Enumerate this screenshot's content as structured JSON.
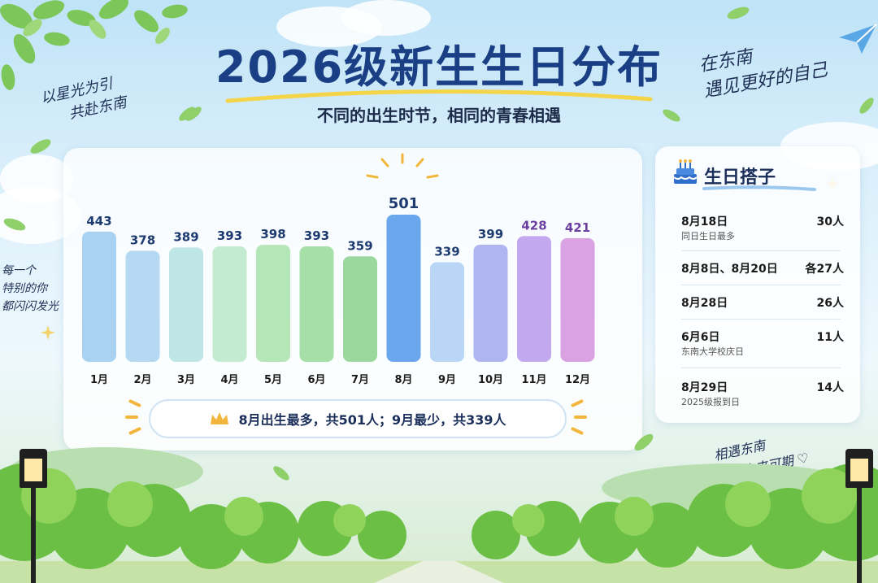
{
  "title": "2026级新生生日分布",
  "subtitle": "不同的出生时节，相同的青春相遇",
  "slogans": {
    "top_left": [
      "以星光为引",
      "共赴东南"
    ],
    "top_right": [
      "在东南",
      "遇见更好的自己"
    ],
    "left_side": [
      "每一个",
      "特别的你",
      "都闪闪发光"
    ],
    "bottom_right": [
      "相遇东南",
      "未来可期 ♡"
    ]
  },
  "chart_data": {
    "type": "bar",
    "categories": [
      "1月",
      "2月",
      "3月",
      "4月",
      "5月",
      "6月",
      "7月",
      "8月",
      "9月",
      "10月",
      "11月",
      "12月"
    ],
    "values": [
      443,
      378,
      389,
      393,
      398,
      393,
      359,
      501,
      339,
      399,
      428,
      421
    ],
    "colors": [
      "#a9d2f2",
      "#b6d9f3",
      "#bfe6e6",
      "#c3ebcf",
      "#b4e6b8",
      "#a6dfa8",
      "#9bd89d",
      "#6aa6ec",
      "#b9d6f6",
      "#aeb5f0",
      "#c1a8ef",
      "#d9a3e3"
    ],
    "value_colors": [
      "#1e3b70",
      "#1e3b70",
      "#1e3b70",
      "#1e3b70",
      "#1e3b70",
      "#1e3b70",
      "#1e3b70",
      "#1e3b70",
      "#1e3b70",
      "#1e3b70",
      "#6b3fa0",
      "#6b3fa0"
    ],
    "ylim": [
      0,
      520
    ],
    "highlight_category": "8月",
    "summary": "8月出生最多，共501人；9月最少，共339人"
  },
  "birthday_partners": {
    "title": "生日搭子",
    "rows": [
      {
        "date": "8月18日",
        "note": "同日生日最多",
        "count": "30人"
      },
      {
        "date": "8月8日、8月20日",
        "note": "",
        "count": "各27人"
      },
      {
        "date": "8月28日",
        "note": "",
        "count": "26人"
      },
      {
        "date": "6月6日",
        "note": "东南大学校庆日",
        "count": "11人"
      },
      {
        "date": "8月29日",
        "note": "2025级报到日",
        "count": "14人"
      }
    ]
  },
  "icons": {
    "crown": "crown-icon",
    "cake": "birthday-cake-icon",
    "paper_plane": "paper-plane-icon",
    "sparkle": "sparkle-icon"
  }
}
